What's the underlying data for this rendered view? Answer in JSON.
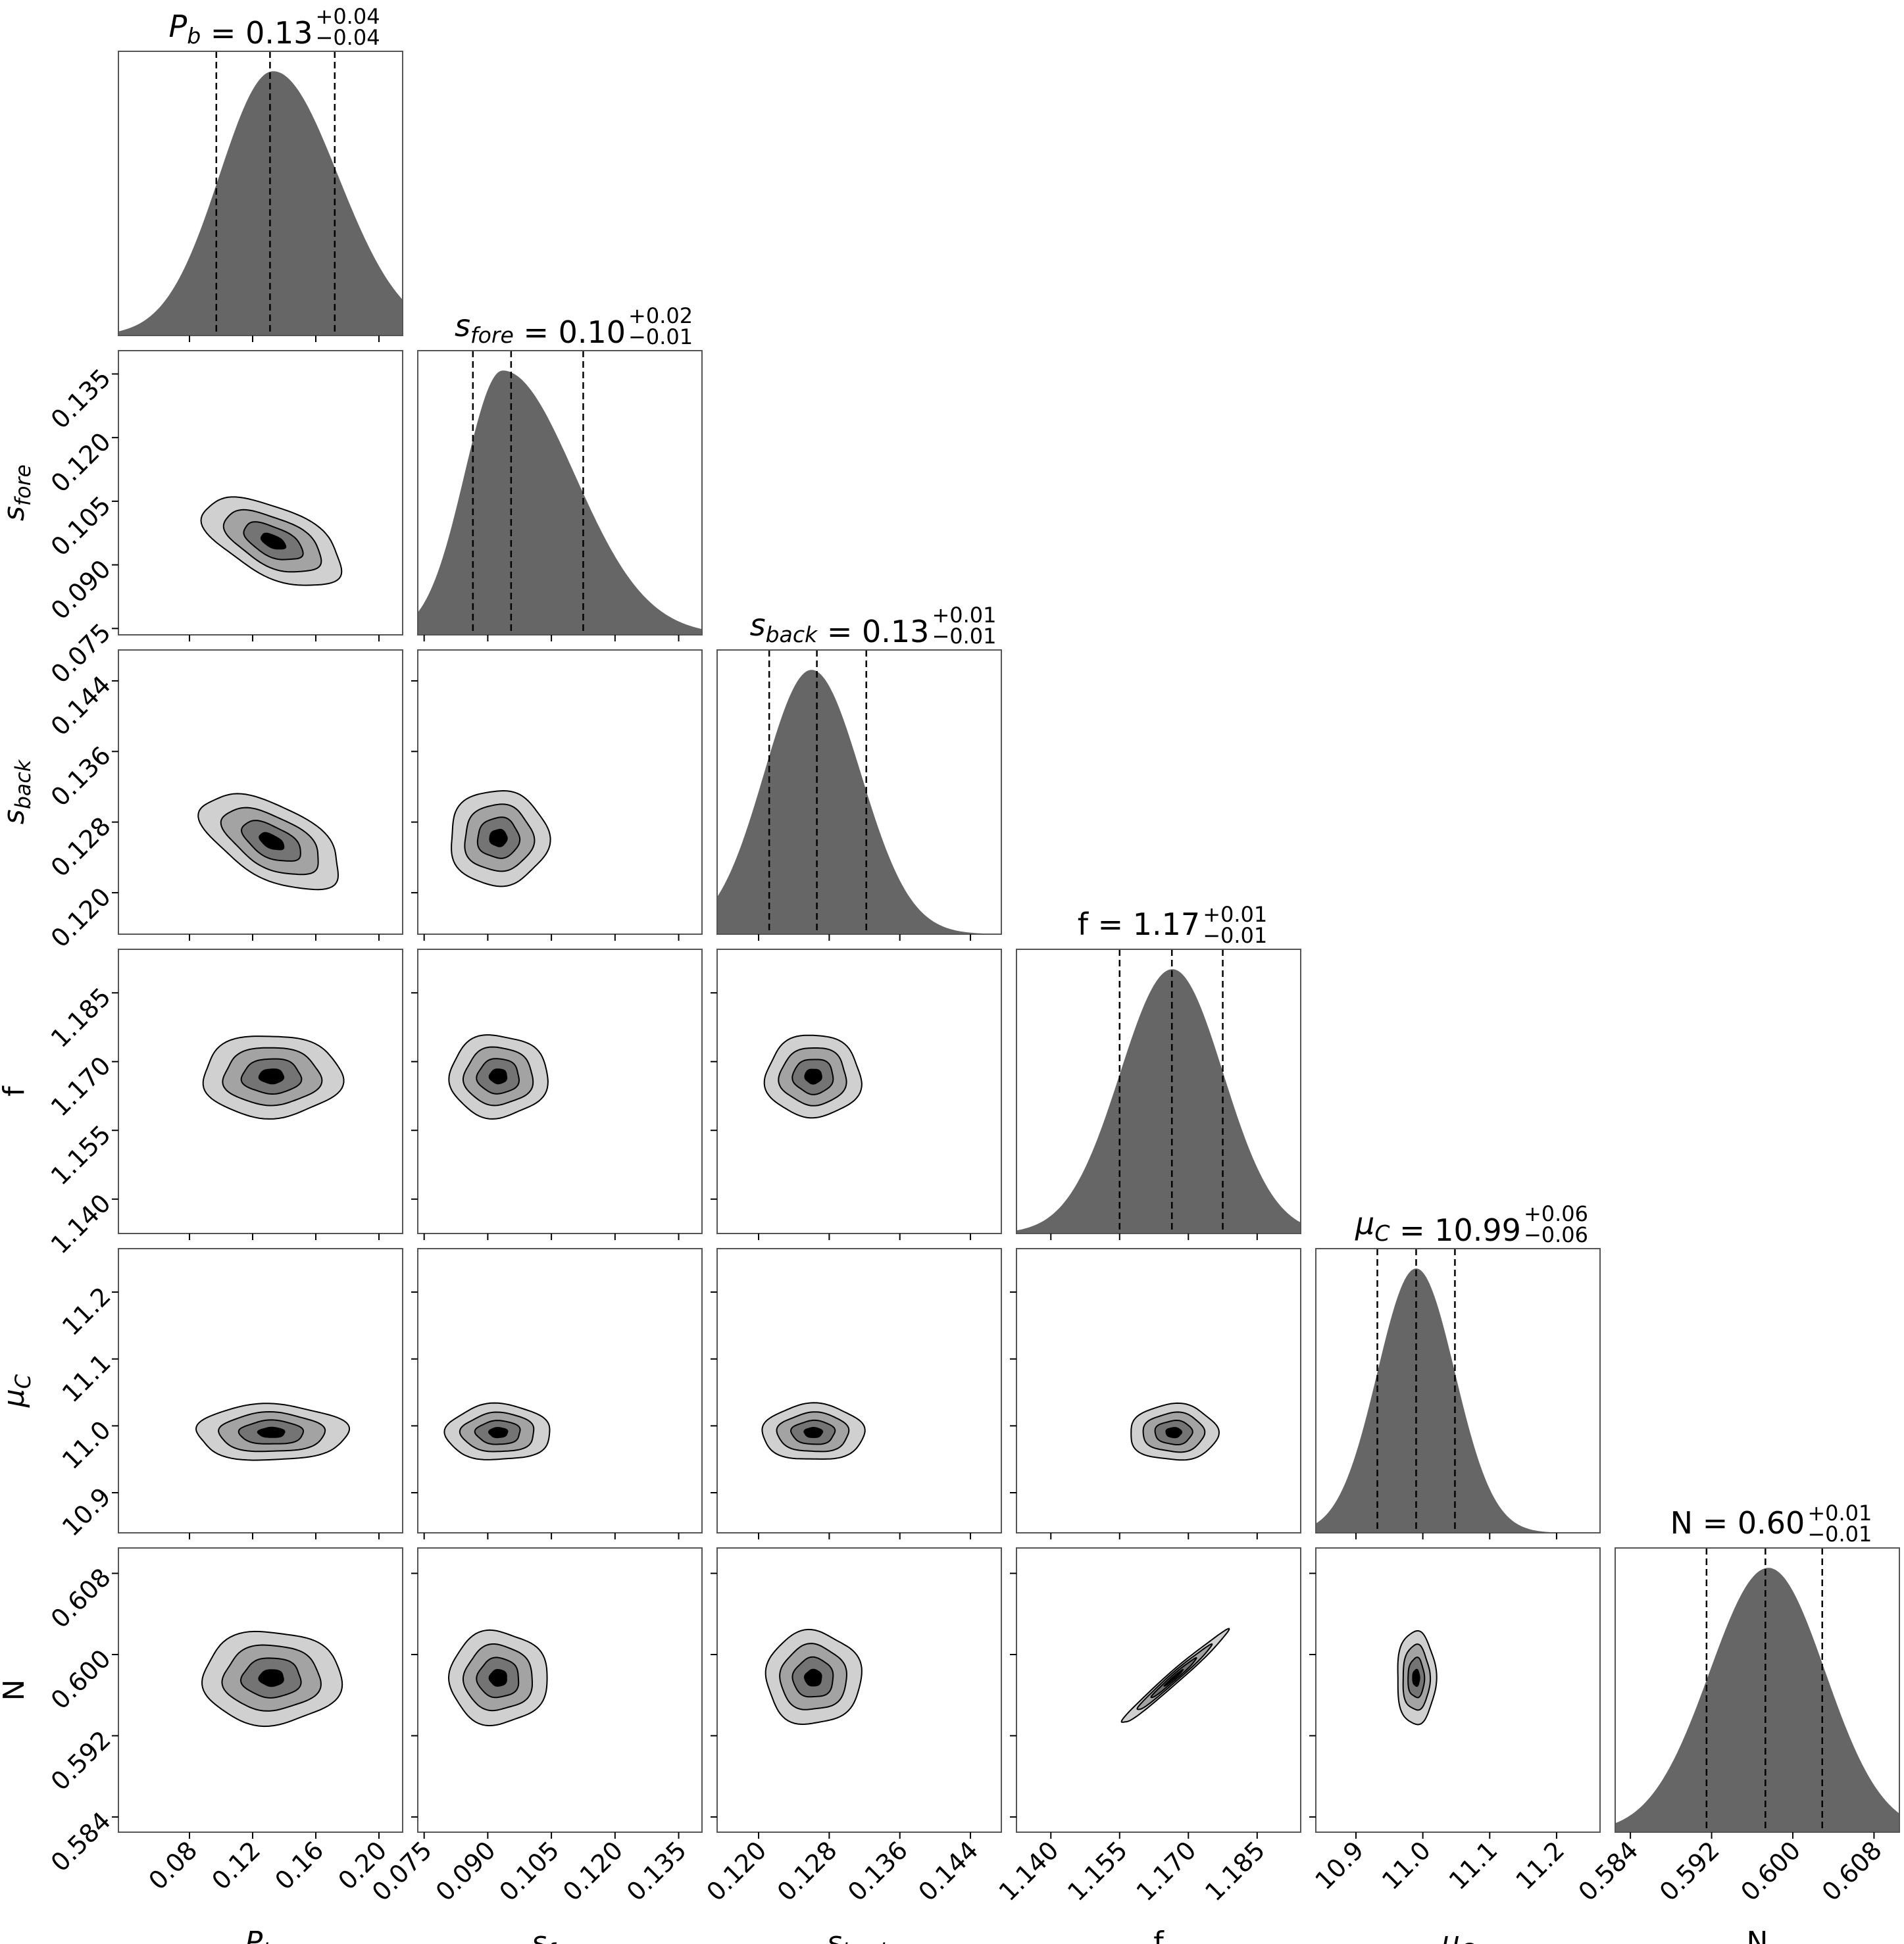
{
  "chart_data": {
    "type": "corner",
    "parameters": [
      {
        "key": "Pb",
        "label_main": "P",
        "label_sub": "b",
        "italic": true,
        "title_value": "0.13",
        "title_plus": "+0.04",
        "title_minus": "−0.04",
        "median": 0.131,
        "q16": 0.097,
        "q84": 0.172,
        "range": [
          0.035,
          0.215
        ],
        "peak": 0.133,
        "sigma": 0.036,
        "ticks": [
          "0.08",
          "0.12",
          "0.16",
          "0.20"
        ]
      },
      {
        "key": "sfore",
        "label_main": "s",
        "label_sub": "fore",
        "italic": true,
        "title_value": "0.10",
        "title_plus": "+0.02",
        "title_minus": "−0.01",
        "median": 0.0955,
        "q16": 0.0865,
        "q84": 0.1125,
        "range": [
          0.0735,
          0.1405
        ],
        "peak": 0.0935,
        "sigma": 0.0095,
        "ticks": [
          "0.075",
          "0.090",
          "0.105",
          "0.120",
          "0.135"
        ]
      },
      {
        "key": "sback",
        "label_main": "s",
        "label_sub": "back",
        "italic": true,
        "title_value": "0.13",
        "title_plus": "+0.01",
        "title_minus": "−0.01",
        "median": 0.1266,
        "q16": 0.1212,
        "q84": 0.1322,
        "range": [
          0.1153,
          0.1475
        ],
        "peak": 0.126,
        "sigma": 0.0042,
        "ticks": [
          "0.120",
          "0.128",
          "0.136",
          "0.144"
        ]
      },
      {
        "key": "f",
        "label_main": "f",
        "label_sub": "",
        "italic": false,
        "title_value": "1.17",
        "title_plus": "+0.01",
        "title_minus": "−0.01",
        "median": 1.1664,
        "q16": 1.155,
        "q84": 1.1775,
        "range": [
          1.1325,
          1.1945
        ],
        "peak": 1.1665,
        "sigma": 0.0058,
        "ticks": [
          "1.140",
          "1.155",
          "1.170",
          "1.185"
        ]
      },
      {
        "key": "muC",
        "label_main": "μ",
        "label_sub": "C",
        "italic": true,
        "title_value": "10.99",
        "title_plus": "+0.06",
        "title_minus": "−0.06",
        "median": 10.99,
        "q16": 10.932,
        "q84": 11.048,
        "range": [
          10.84,
          11.265
        ],
        "peak": 10.99,
        "sigma": 0.028,
        "ticks": [
          "10.9",
          "11.0",
          "11.1",
          "11.2"
        ]
      },
      {
        "key": "N",
        "label_main": "N",
        "label_sub": "",
        "italic": false,
        "title_value": "0.60",
        "title_plus": "+0.01",
        "title_minus": "−0.01",
        "median": 0.5973,
        "q16": 0.5915,
        "q84": 0.6029,
        "range": [
          0.5825,
          0.6105
        ],
        "peak": 0.5976,
        "sigma": 0.0029,
        "ticks": [
          "0.584",
          "0.592",
          "0.600",
          "0.608"
        ]
      }
    ],
    "histogram_fill": "#666666",
    "contour_fills": [
      "#d0d0d0",
      "#a3a3a3",
      "#747474",
      "#000000"
    ],
    "contour_edge": "#000000",
    "quantile_lines": "dashed",
    "contours": [
      {
        "x": "Pb",
        "y": "sfore",
        "cx": 0.133,
        "cy": 0.0955,
        "sx": 0.022,
        "sy": 0.0052,
        "rho": -0.55
      },
      {
        "x": "Pb",
        "y": "sback",
        "cx": 0.132,
        "cy": 0.1258,
        "sx": 0.022,
        "sy": 0.0027,
        "rho": -0.55
      },
      {
        "x": "sfore",
        "y": "sback",
        "cx": 0.0925,
        "cy": 0.1262,
        "sx": 0.0058,
        "sy": 0.0027,
        "rho": 0.0
      },
      {
        "x": "Pb",
        "y": "f",
        "cx": 0.132,
        "cy": 1.1668,
        "sx": 0.022,
        "sy": 0.0045,
        "rho": 0.0
      },
      {
        "x": "sfore",
        "y": "f",
        "cx": 0.0925,
        "cy": 1.1668,
        "sx": 0.0058,
        "sy": 0.0045,
        "rho": 0.0
      },
      {
        "x": "sback",
        "y": "f",
        "cx": 0.1262,
        "cy": 1.1668,
        "sx": 0.0027,
        "sy": 0.0045,
        "rho": 0.0
      },
      {
        "x": "Pb",
        "y": "muC",
        "cx": 0.132,
        "cy": 10.99,
        "sx": 0.024,
        "sy": 0.021,
        "rho": 0.0
      },
      {
        "x": "sfore",
        "y": "muC",
        "cx": 0.0925,
        "cy": 10.99,
        "sx": 0.0062,
        "sy": 0.021,
        "rho": 0.0
      },
      {
        "x": "sback",
        "y": "muC",
        "cx": 0.1262,
        "cy": 10.99,
        "sx": 0.0029,
        "sy": 0.021,
        "rho": 0.0
      },
      {
        "x": "f",
        "y": "muC",
        "cx": 1.1668,
        "cy": 10.99,
        "sx": 0.0048,
        "sy": 0.021,
        "rho": 0.0
      },
      {
        "x": "Pb",
        "y": "N",
        "cx": 0.132,
        "cy": 0.5977,
        "sx": 0.022,
        "sy": 0.0023,
        "rho": 0.0
      },
      {
        "x": "sfore",
        "y": "N",
        "cx": 0.0925,
        "cy": 0.5977,
        "sx": 0.0058,
        "sy": 0.0023,
        "rho": 0.0
      },
      {
        "x": "sback",
        "y": "N",
        "cx": 0.1262,
        "cy": 0.5977,
        "sx": 0.0027,
        "sy": 0.0023,
        "rho": 0.0
      },
      {
        "x": "f",
        "y": "N",
        "cx": 1.1668,
        "cy": 0.5977,
        "sx": 0.0058,
        "sy": 0.0023,
        "rho": 0.985
      },
      {
        "x": "muC",
        "y": "N",
        "cx": 10.99,
        "cy": 0.5977,
        "sx": 0.0145,
        "sy": 0.0023,
        "rho": 0.0
      }
    ],
    "contour_levels_sigma": [
      2.0,
      1.4,
      0.85,
      0.35
    ]
  }
}
